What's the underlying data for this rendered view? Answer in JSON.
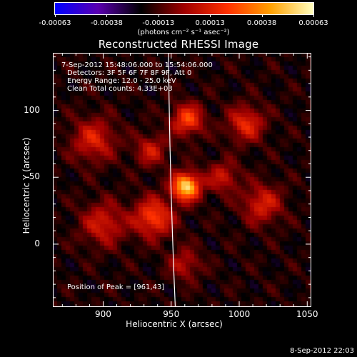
{
  "colorbar": {
    "ticks": [
      "-0.00063",
      "-0.00038",
      "-0.00013",
      "0.00013",
      "0.00038",
      "0.00063"
    ],
    "units": "(photons cm⁻² s⁻¹ asec⁻²)"
  },
  "chart_data": {
    "type": "heatmap",
    "title": "Reconstructed RHESSI Image",
    "xlabel": "Heliocentric X (arcsec)",
    "ylabel": "Heliocentric Y (arcsec)",
    "xlim": [
      863,
      1053
    ],
    "ylim": [
      -47,
      143
    ],
    "xticks": [
      "900",
      "950",
      "1000",
      "1050"
    ],
    "yticks": [
      "0",
      "50",
      "100"
    ],
    "zlim": [
      -0.00063,
      0.00063
    ],
    "colormap": [
      "#0000ff",
      "#5a00b0",
      "#000000",
      "#a00000",
      "#ff3000",
      "#ffa000",
      "#ffffc0"
    ],
    "peak": [
      961,
      43
    ],
    "limb_crossing_x": [
      948,
      953
    ],
    "annotations": {
      "time_range": "7-Sep-2012 15:48:06.000 to 15:54:06.000",
      "detectors": "Detectors: 3F 5F 6F 7F 8F 9F, Att 0",
      "energy": "Energy Range: 12.0 - 25.0 keV",
      "clean": "Clean     Total counts: 4.33E+03",
      "peak_position": "Position of Peak = [961,43]"
    }
  },
  "footer": {
    "date": "8-Sep-2012 22:03"
  }
}
